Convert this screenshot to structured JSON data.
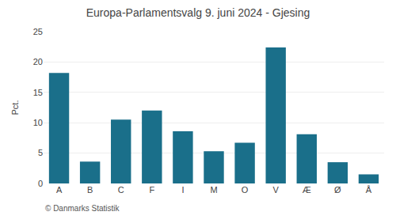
{
  "chart_data": {
    "type": "bar",
    "title": "Europa-Parlamentsvalg 9. juni 2024 - Gjesing",
    "ylabel": "Pct.",
    "annotations": [
      "© Danmarks Statistik"
    ],
    "categories": [
      "A",
      "B",
      "C",
      "F",
      "I",
      "M",
      "O",
      "V",
      "Æ",
      "Ø",
      "Å"
    ],
    "values": [
      18.2,
      3.6,
      10.5,
      12.0,
      8.6,
      5.3,
      6.7,
      22.4,
      8.1,
      3.5,
      1.5
    ],
    "color": "#1a6f8a",
    "ylim": [
      0,
      25
    ],
    "yticks": [
      0,
      5,
      10,
      15,
      20,
      25
    ],
    "grid": true
  }
}
